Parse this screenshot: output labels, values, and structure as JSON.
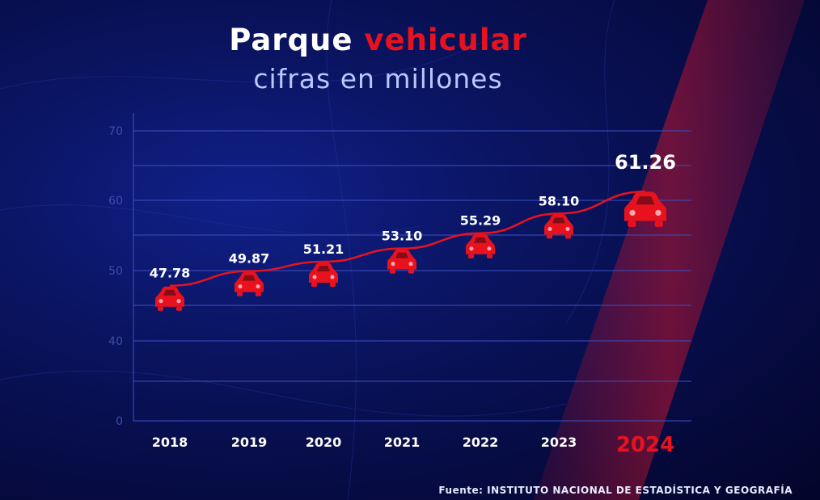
{
  "title_main": "Parque",
  "title_accent": "vehicular",
  "subtitle": "cifras en millones",
  "source": "Fuente: INSTITUTO NACIONAL DE  ESTADÍSTICA Y GEOGRAFÍA",
  "colors": {
    "accent": "#e8121f",
    "text": "#ffffff",
    "subtitle": "#b8c8ff",
    "background": "#0a1460"
  },
  "chart_data": {
    "type": "line",
    "title": "Parque vehicular",
    "subtitle": "cifras en millones",
    "categories": [
      "2018",
      "2019",
      "2020",
      "2021",
      "2022",
      "2023",
      "2024"
    ],
    "series": [
      {
        "values": [
          47.78,
          49.87,
          51.21,
          53.1,
          55.29,
          58.1,
          61.26
        ]
      }
    ],
    "value_labels": [
      "47.78",
      "49.87",
      "51.21",
      "53.10",
      "55.29",
      "58.10",
      "61.26"
    ],
    "yticks": [
      "70",
      "60",
      "50",
      "40",
      "0"
    ],
    "ylim": [
      0,
      70
    ],
    "grid": true,
    "marker_icon": "car-icon",
    "highlight_category": "2024",
    "line_color": "#e8121f"
  }
}
